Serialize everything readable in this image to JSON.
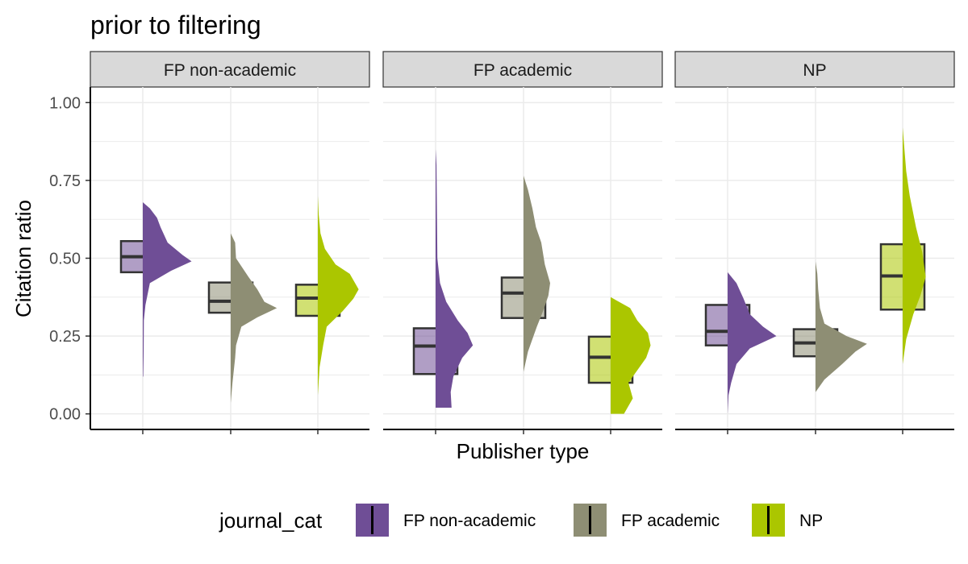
{
  "chart_data": {
    "type": "raincloud",
    "title": "prior to filtering",
    "xlabel": "Publisher type",
    "ylabel": "Citation ratio",
    "ylim": [
      -0.05,
      1.05
    ],
    "yticks": [
      0.0,
      0.25,
      0.5,
      0.75,
      1.0
    ],
    "ytick_labels": [
      "0.00",
      "0.25",
      "0.50",
      "0.75",
      "1.00"
    ],
    "grid": true,
    "legend": {
      "title": "journal_cat",
      "position": "bottom",
      "entries": [
        "FP non-academic",
        "FP academic",
        "NP"
      ]
    },
    "series_colors": {
      "FP non-academic": "#6F4E96",
      "FP academic": "#8E8E74",
      "NP": "#ABC600"
    },
    "panels": [
      {
        "label": "FP non-academic",
        "groups": [
          {
            "name": "FP non-academic",
            "box": {
              "q1": 0.455,
              "median": 0.505,
              "q3": 0.555
            },
            "density": {
              "min": 0.12,
              "max": 0.68,
              "points": [
                [
                  0.12,
                  0.005
                ],
                [
                  0.2,
                  0.01
                ],
                [
                  0.3,
                  0.012
                ],
                [
                  0.35,
                  0.03
                ],
                [
                  0.42,
                  0.08
                ],
                [
                  0.46,
                  0.32
                ],
                [
                  0.49,
                  0.55
                ],
                [
                  0.51,
                  0.45
                ],
                [
                  0.55,
                  0.28
                ],
                [
                  0.6,
                  0.2
                ],
                [
                  0.63,
                  0.16
                ],
                [
                  0.66,
                  0.08
                ],
                [
                  0.68,
                  0.0
                ]
              ]
            }
          },
          {
            "name": "FP academic",
            "box": {
              "q1": 0.325,
              "median": 0.362,
              "q3": 0.422
            },
            "density": {
              "min": 0.035,
              "max": 0.58,
              "points": [
                [
                  0.035,
                  0.0
                ],
                [
                  0.1,
                  0.02
                ],
                [
                  0.18,
                  0.05
                ],
                [
                  0.22,
                  0.06
                ],
                [
                  0.28,
                  0.12
                ],
                [
                  0.31,
                  0.3
                ],
                [
                  0.34,
                  0.52
                ],
                [
                  0.36,
                  0.38
                ],
                [
                  0.4,
                  0.3
                ],
                [
                  0.44,
                  0.2
                ],
                [
                  0.5,
                  0.06
                ],
                [
                  0.55,
                  0.05
                ],
                [
                  0.58,
                  0.0
                ]
              ]
            }
          },
          {
            "name": "NP",
            "box": {
              "q1": 0.315,
              "median": 0.372,
              "q3": 0.415
            },
            "density": {
              "min": 0.06,
              "max": 0.7,
              "points": [
                [
                  0.06,
                  0.0
                ],
                [
                  0.15,
                  0.02
                ],
                [
                  0.22,
                  0.06
                ],
                [
                  0.28,
                  0.1
                ],
                [
                  0.33,
                  0.28
                ],
                [
                  0.37,
                  0.4
                ],
                [
                  0.4,
                  0.46
                ],
                [
                  0.45,
                  0.36
                ],
                [
                  0.48,
                  0.2
                ],
                [
                  0.53,
                  0.08
                ],
                [
                  0.58,
                  0.03
                ],
                [
                  0.64,
                  0.01
                ],
                [
                  0.7,
                  0.0
                ]
              ]
            }
          }
        ]
      },
      {
        "label": "FP academic",
        "groups": [
          {
            "name": "FP non-academic",
            "box": {
              "q1": 0.128,
              "median": 0.218,
              "q3": 0.275
            },
            "density": {
              "min": 0.02,
              "max": 0.85,
              "points": [
                [
                  0.02,
                  0.18
                ],
                [
                  0.07,
                  0.17
                ],
                [
                  0.12,
                  0.2
                ],
                [
                  0.18,
                  0.3
                ],
                [
                  0.22,
                  0.42
                ],
                [
                  0.26,
                  0.36
                ],
                [
                  0.3,
                  0.25
                ],
                [
                  0.36,
                  0.12
                ],
                [
                  0.42,
                  0.05
                ],
                [
                  0.5,
                  0.02
                ],
                [
                  0.65,
                  0.015
                ],
                [
                  0.8,
                  0.01
                ],
                [
                  0.85,
                  0.0
                ]
              ]
            }
          },
          {
            "name": "FP academic",
            "box": {
              "q1": 0.308,
              "median": 0.388,
              "q3": 0.438
            },
            "density": {
              "min": 0.135,
              "max": 0.765,
              "points": [
                [
                  0.135,
                  0.0
                ],
                [
                  0.2,
                  0.05
                ],
                [
                  0.28,
                  0.15
                ],
                [
                  0.33,
                  0.22
                ],
                [
                  0.38,
                  0.28
                ],
                [
                  0.42,
                  0.3
                ],
                [
                  0.48,
                  0.24
                ],
                [
                  0.55,
                  0.2
                ],
                [
                  0.6,
                  0.14
                ],
                [
                  0.66,
                  0.1
                ],
                [
                  0.72,
                  0.05
                ],
                [
                  0.765,
                  0.0
                ]
              ]
            }
          },
          {
            "name": "NP",
            "box": {
              "q1": 0.1,
              "median": 0.182,
              "q3": 0.248
            },
            "density": {
              "min": 0.0,
              "max": 0.375,
              "points": [
                [
                  0.0,
                  0.15
                ],
                [
                  0.05,
                  0.25
                ],
                [
                  0.1,
                  0.2
                ],
                [
                  0.14,
                  0.3
                ],
                [
                  0.18,
                  0.4
                ],
                [
                  0.22,
                  0.45
                ],
                [
                  0.26,
                  0.42
                ],
                [
                  0.3,
                  0.3
                ],
                [
                  0.34,
                  0.22
                ],
                [
                  0.375,
                  0.0
                ]
              ]
            }
          }
        ]
      },
      {
        "label": "NP",
        "groups": [
          {
            "name": "FP non-academic",
            "box": {
              "q1": 0.22,
              "median": 0.265,
              "q3": 0.35
            },
            "density": {
              "min": 0.0,
              "max": 0.455,
              "points": [
                [
                  0.0,
                  0.0
                ],
                [
                  0.06,
                  0.01
                ],
                [
                  0.1,
                  0.04
                ],
                [
                  0.16,
                  0.1
                ],
                [
                  0.21,
                  0.25
                ],
                [
                  0.25,
                  0.55
                ],
                [
                  0.28,
                  0.4
                ],
                [
                  0.32,
                  0.25
                ],
                [
                  0.37,
                  0.18
                ],
                [
                  0.42,
                  0.1
                ],
                [
                  0.455,
                  0.0
                ]
              ]
            }
          },
          {
            "name": "FP academic",
            "box": {
              "q1": 0.185,
              "median": 0.228,
              "q3": 0.272
            },
            "density": {
              "min": 0.07,
              "max": 0.49,
              "points": [
                [
                  0.07,
                  0.0
                ],
                [
                  0.11,
                  0.1
                ],
                [
                  0.16,
                  0.3
                ],
                [
                  0.2,
                  0.45
                ],
                [
                  0.225,
                  0.58
                ],
                [
                  0.25,
                  0.35
                ],
                [
                  0.29,
                  0.1
                ],
                [
                  0.34,
                  0.05
                ],
                [
                  0.4,
                  0.03
                ],
                [
                  0.45,
                  0.02
                ],
                [
                  0.49,
                  0.0
                ]
              ]
            }
          },
          {
            "name": "NP",
            "box": {
              "q1": 0.335,
              "median": 0.443,
              "q3": 0.545
            },
            "density": {
              "min": 0.16,
              "max": 0.92,
              "points": [
                [
                  0.16,
                  0.0
                ],
                [
                  0.24,
                  0.04
                ],
                [
                  0.32,
                  0.12
                ],
                [
                  0.38,
                  0.2
                ],
                [
                  0.44,
                  0.26
                ],
                [
                  0.52,
                  0.22
                ],
                [
                  0.6,
                  0.15
                ],
                [
                  0.7,
                  0.08
                ],
                [
                  0.78,
                  0.04
                ],
                [
                  0.85,
                  0.02
                ],
                [
                  0.92,
                  0.0
                ]
              ]
            }
          }
        ]
      }
    ]
  }
}
